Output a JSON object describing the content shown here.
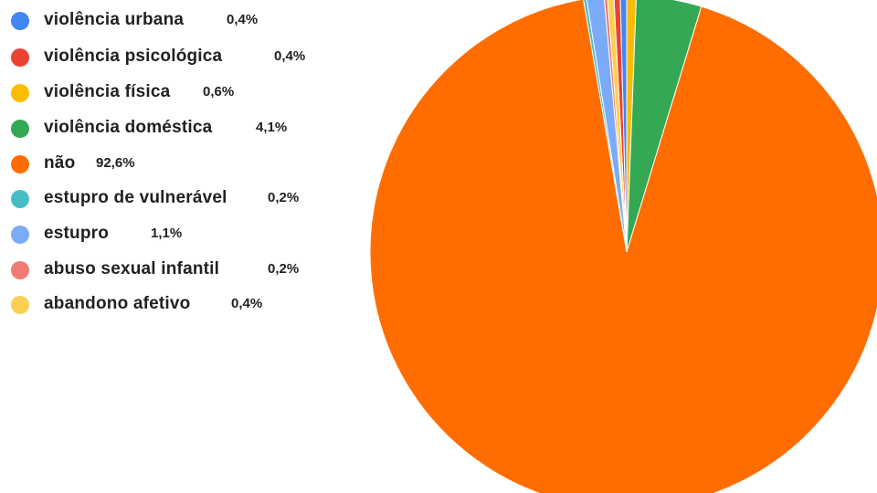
{
  "chart_data": {
    "type": "pie",
    "title": "",
    "legend_position": "left",
    "slices": [
      {
        "label": "violência urbana",
        "value_label": "0,4%",
        "value": 0.4,
        "color": "#4285f4"
      },
      {
        "label": "violência psicológica",
        "value_label": "0,4%",
        "value": 0.4,
        "color": "#ea4335"
      },
      {
        "label": "violência física",
        "value_label": "0,6%",
        "value": 0.6,
        "color": "#fbbc04"
      },
      {
        "label": "violência doméstica",
        "value_label": "4,1%",
        "value": 4.1,
        "color": "#34a853"
      },
      {
        "label": "não",
        "value_label": "92,6%",
        "value": 92.6,
        "color": "#ff6d01"
      },
      {
        "label": "estupro de vulnerável",
        "value_label": "0,2%",
        "value": 0.2,
        "color": "#46bdc6"
      },
      {
        "label": "estupro",
        "value_label": "1,1%",
        "value": 1.1,
        "color": "#7baaf7"
      },
      {
        "label": "abuso sexual infantil",
        "value_label": "0,2%",
        "value": 0.2,
        "color": "#f07b72"
      },
      {
        "label": "abandono afetivo",
        "value_label": "0,4%",
        "value": 0.4,
        "color": "#fcd04f"
      }
    ]
  }
}
